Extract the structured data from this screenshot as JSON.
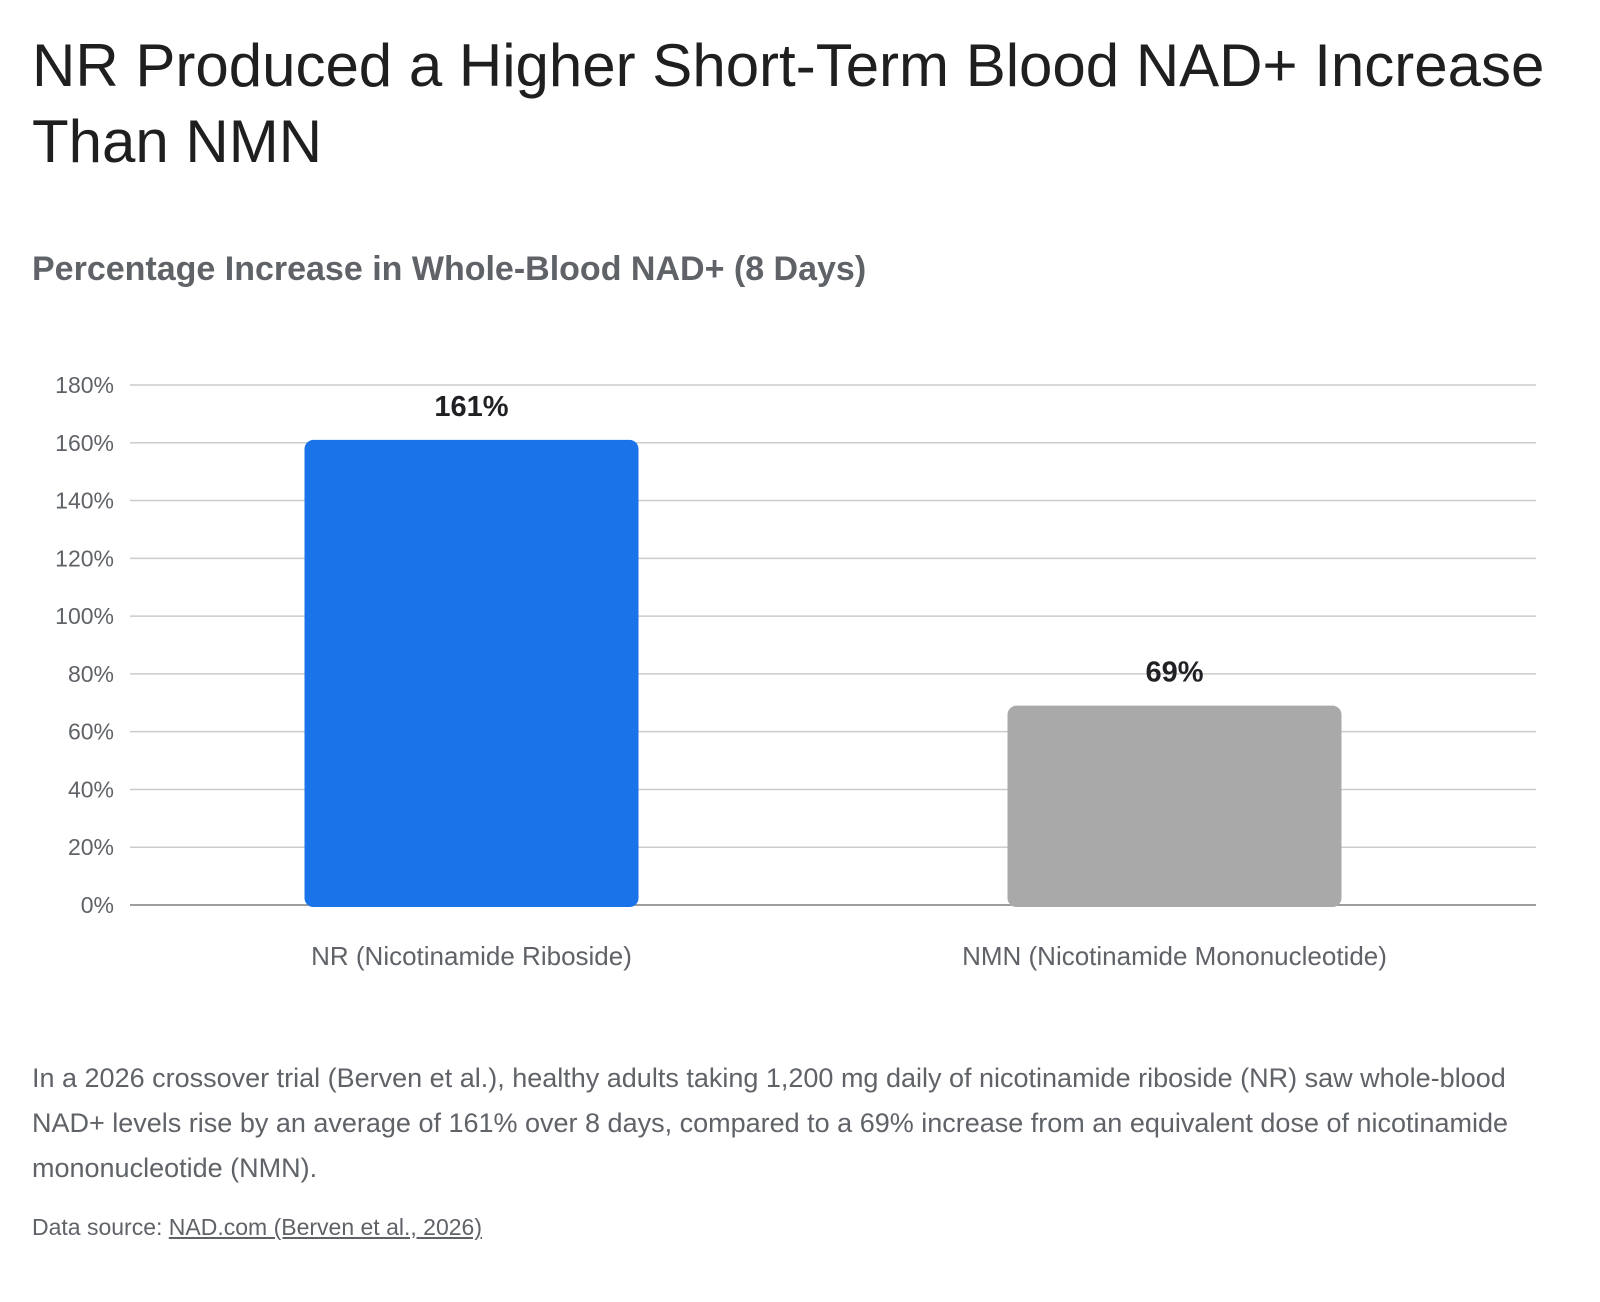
{
  "header": {
    "title": "NR Produced a Higher Short-Term Blood NAD+ Increase Than NMN"
  },
  "chart_data": {
    "type": "bar",
    "title": "Percentage Increase in Whole-Blood NAD+ (8 Days)",
    "xlabel": "",
    "ylabel": "",
    "categories": [
      "NR (Nicotinamide Riboside)",
      "NMN (Nicotinamide Mononucleotide)"
    ],
    "values": [
      161,
      69
    ],
    "value_labels": [
      "161%",
      "69%"
    ],
    "bar_colors": [
      "#1a73e8",
      "#a9a9a9"
    ],
    "ylim": [
      0,
      180
    ],
    "yticks": [
      0,
      20,
      40,
      60,
      80,
      100,
      120,
      140,
      160,
      180
    ],
    "ytick_labels": [
      "0%",
      "20%",
      "40%",
      "60%",
      "80%",
      "100%",
      "120%",
      "140%",
      "160%",
      "180%"
    ],
    "grid": true,
    "legend": "none"
  },
  "caption": {
    "text": "In a 2026 crossover trial (Berven et al.), healthy adults taking 1,200 mg daily of nicotinamide riboside (NR) saw whole-blood NAD+ levels rise by an average of 161% over 8 days, compared to a 69% increase from an equivalent dose of nicotinamide mononucleotide (NMN)."
  },
  "source": {
    "prefix": "Data source: ",
    "link_text": "NAD.com (Berven et al., 2026)"
  }
}
